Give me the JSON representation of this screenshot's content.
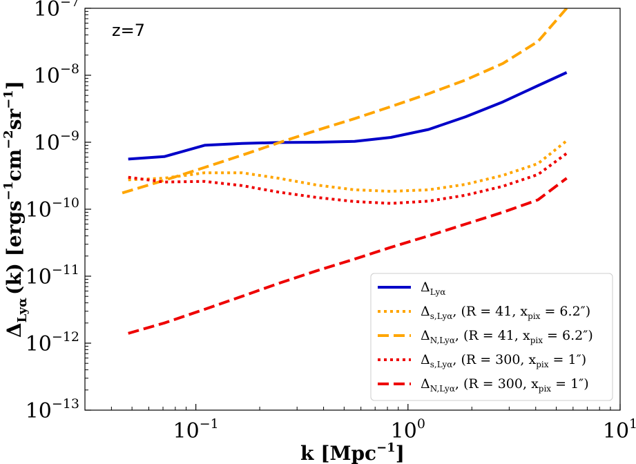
{
  "chart_data": {
    "type": "line",
    "title": "",
    "annotation": "z=7",
    "xlabel": {
      "main": "k [Mpc",
      "sup": "−1",
      "end": "]"
    },
    "ylabel": {
      "main": "Δ",
      "sub": "Lyα",
      "rest": "(k) [ergs",
      "sup1": "−1",
      "mid1": "cm",
      "sup2": "−2",
      "mid2": "sr",
      "sup3": "−1",
      "end": "]"
    },
    "xscale": "log",
    "yscale": "log",
    "xlim": [
      0.03,
      10
    ],
    "ylim": [
      1e-13,
      1e-07
    ],
    "xticks": [
      {
        "value": 0.1,
        "base": "10",
        "exp": "−1"
      },
      {
        "value": 1,
        "base": "10",
        "exp": "0"
      },
      {
        "value": 10,
        "base": "10",
        "exp": "1"
      }
    ],
    "yticks": [
      {
        "value": 1e-13,
        "base": "10",
        "exp": "−13"
      },
      {
        "value": 1e-12,
        "base": "10",
        "exp": "−12"
      },
      {
        "value": 1e-11,
        "base": "10",
        "exp": "−11"
      },
      {
        "value": 1e-10,
        "base": "10",
        "exp": "−10"
      },
      {
        "value": 1e-09,
        "base": "10",
        "exp": "−9"
      },
      {
        "value": 1e-08,
        "base": "10",
        "exp": "−8"
      },
      {
        "value": 1e-07,
        "base": "10",
        "exp": "−7"
      }
    ],
    "legend_position": "lower-right",
    "series": [
      {
        "name": "Δ_Lyα",
        "legend": {
          "sym": "Δ",
          "sub": "Lyα",
          "rest": ""
        },
        "color": "#0000c8",
        "style": "solid",
        "x": [
          0.048,
          0.071,
          0.11,
          0.165,
          0.245,
          0.37,
          0.56,
          0.83,
          1.25,
          1.87,
          2.8,
          4.1,
          5.6
        ],
        "y": [
          5.6e-10,
          6.1e-10,
          9e-10,
          9.6e-10,
          9.9e-10,
          1e-09,
          1.03e-09,
          1.18e-09,
          1.55e-09,
          2.4e-09,
          4e-09,
          7e-09,
          1.1e-08
        ]
      },
      {
        "name": "Δ_s,Lyα, (R = 41, x_pix = 6.2″)",
        "legend": {
          "sym": "Δ",
          "sub": "s,Lyα",
          "rest": ", (R = 41, x",
          "sub2": "pix",
          "rest2": " = 6.2″)"
        },
        "color": "#ffa500",
        "style": "dotted",
        "x": [
          0.048,
          0.071,
          0.11,
          0.165,
          0.245,
          0.37,
          0.56,
          0.83,
          1.25,
          1.87,
          2.8,
          4.1,
          5.6
        ],
        "y": [
          2.75e-10,
          2.9e-10,
          3.5e-10,
          3.5e-10,
          2.9e-10,
          2.3e-10,
          1.95e-10,
          1.85e-10,
          1.95e-10,
          2.35e-10,
          3.2e-10,
          4.8e-10,
          1.05e-09
        ]
      },
      {
        "name": "Δ_N,Lyα, (R = 41, x_pix = 6.2″)",
        "legend": {
          "sym": "Δ",
          "sub": "N,Lyα",
          "rest": ", (R = 41, x",
          "sub2": "pix",
          "rest2": " = 6.2″)"
        },
        "color": "#ffa500",
        "style": "dashed",
        "x": [
          0.045,
          0.071,
          0.11,
          0.165,
          0.245,
          0.37,
          0.56,
          0.83,
          1.25,
          1.87,
          2.8,
          4.1,
          5.6
        ],
        "y": [
          1.75e-10,
          2.7e-10,
          4.2e-10,
          6.4e-10,
          9.8e-10,
          1.5e-09,
          2.25e-09,
          3.4e-09,
          5.3e-09,
          8.5e-09,
          1.5e-08,
          3.2e-08,
          1e-07
        ]
      },
      {
        "name": "Δ_s,Lyα, (R = 300, x_pix = 1″)",
        "legend": {
          "sym": "Δ",
          "sub": "s,Lyα",
          "rest": ", (R = 300, x",
          "sub2": "pix",
          "rest2": " = 1″)"
        },
        "color": "#ee0000",
        "style": "dotted",
        "x": [
          0.048,
          0.071,
          0.11,
          0.165,
          0.245,
          0.37,
          0.56,
          0.83,
          1.25,
          1.87,
          2.8,
          4.1,
          5.6
        ],
        "y": [
          3e-10,
          2.55e-10,
          2.6e-10,
          2.25e-10,
          1.8e-10,
          1.5e-10,
          1.3e-10,
          1.22e-10,
          1.32e-10,
          1.62e-10,
          2.2e-10,
          3.3e-10,
          6.8e-10
        ]
      },
      {
        "name": "Δ_N,Lyα, (R = 300, x_pix = 1″)",
        "legend": {
          "sym": "Δ",
          "sub": "N,Lyα",
          "rest": ", (R = 300, x",
          "sub2": "pix",
          "rest2": " = 1″)"
        },
        "color": "#ee0000",
        "style": "dashed",
        "x": [
          0.048,
          0.071,
          0.11,
          0.165,
          0.245,
          0.37,
          0.56,
          0.83,
          1.25,
          1.87,
          2.8,
          4.1,
          5.6
        ],
        "y": [
          1.4e-12,
          2e-12,
          3.2e-12,
          5e-12,
          7.8e-12,
          1.2e-11,
          1.8e-11,
          2.7e-11,
          4e-11,
          6e-11,
          9e-11,
          1.38e-10,
          2.9e-10
        ]
      }
    ]
  }
}
